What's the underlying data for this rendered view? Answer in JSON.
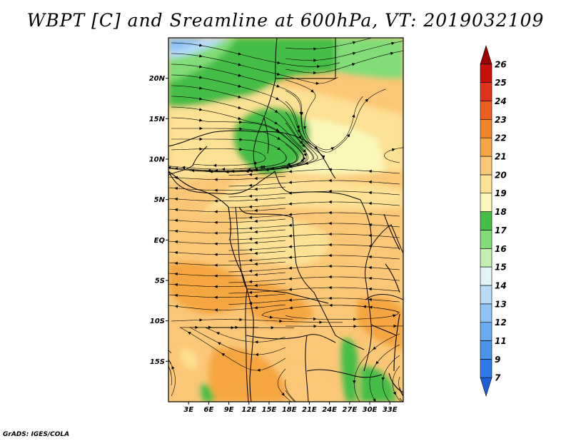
{
  "title": "WBPT [C] and Sreamline at 600hPa, VT: 2019032109",
  "credit": "GrADS: IGES/COLA",
  "map": {
    "lon_range": [
      0,
      35
    ],
    "lat_range": [
      -20,
      25
    ],
    "lon_ticks": [
      {
        "lon": 3,
        "label": "3E"
      },
      {
        "lon": 6,
        "label": "6E"
      },
      {
        "lon": 9,
        "label": "9E"
      },
      {
        "lon": 12,
        "label": "12E"
      },
      {
        "lon": 15,
        "label": "15E"
      },
      {
        "lon": 18,
        "label": "18E"
      },
      {
        "lon": 21,
        "label": "21E"
      },
      {
        "lon": 24,
        "label": "24E"
      },
      {
        "lon": 27,
        "label": "27E"
      },
      {
        "lon": 30,
        "label": "30E"
      },
      {
        "lon": 33,
        "label": "33E"
      }
    ],
    "lat_ticks": [
      {
        "lat": 20,
        "label": "20N"
      },
      {
        "lat": 15,
        "label": "15N"
      },
      {
        "lat": 10,
        "label": "10N"
      },
      {
        "lat": 5,
        "label": "5N"
      },
      {
        "lat": 0,
        "label": "EQ"
      },
      {
        "lat": -5,
        "label": "5S"
      },
      {
        "lat": -10,
        "label": "10S"
      },
      {
        "lat": -15,
        "label": "15S"
      }
    ]
  },
  "colorbar": {
    "labels": [
      "7",
      "9",
      "11",
      "12",
      "13",
      "14",
      "15",
      "16",
      "17",
      "18",
      "19",
      "20",
      "21",
      "22",
      "23",
      "24",
      "25",
      "26"
    ],
    "colors": [
      "#1e5fd8",
      "#2f7ae6",
      "#4a94ec",
      "#6aaaf0",
      "#8ec3f4",
      "#b8dcf8",
      "#e2f4f8",
      "#c2f0b0",
      "#82dc78",
      "#44be46",
      "#fbf7b8",
      "#fde194",
      "#fac776",
      "#f5a640",
      "#f1842a",
      "#eb5e1e",
      "#e0341a",
      "#c81008",
      "#a00000"
    ]
  }
}
